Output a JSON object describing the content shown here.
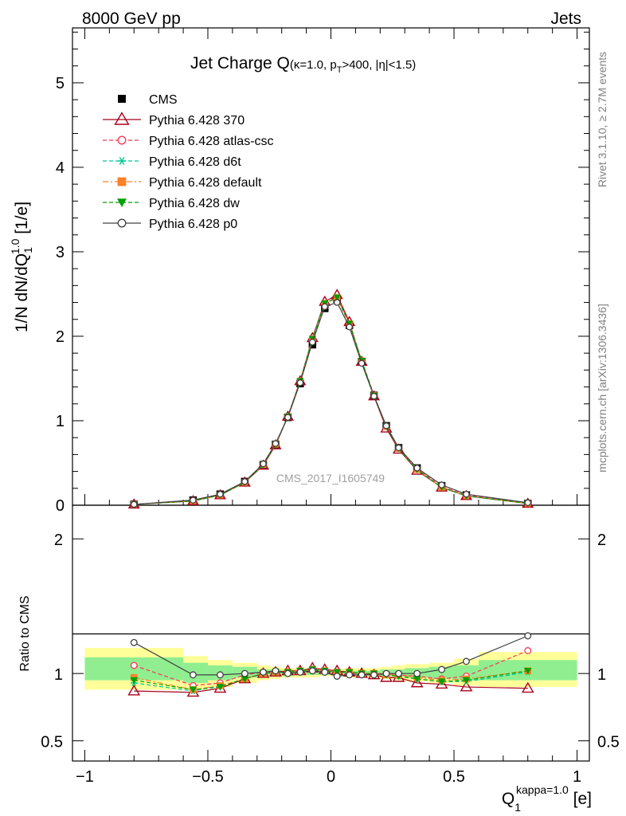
{
  "header": {
    "left": "8000 GeV pp",
    "right": "Jets"
  },
  "side_labels": {
    "rivet": "Rivet 3.1.10, ≥ 2.7M events",
    "mcplots": "mcplots.cern.ch [arXiv:1306.3436]"
  },
  "chart_data": [
    {
      "type": "line",
      "title": {
        "main": "Jet Charge Q",
        "sub": "(κ=1.0, p",
        "sub_T": "T",
        "sub2": ">400, |η|<1.5)"
      },
      "watermark": "CMS_2017_I1605749",
      "ylabel": {
        "a": "1/N dN/dQ",
        "sub": "1",
        "sup": "1.0",
        "b": " [1/e]"
      },
      "xlabel": {
        "a": "Q",
        "sub": "1",
        "sup": "kappa=1.0",
        "b": " [e]"
      },
      "xlim": [
        -1.05,
        1.05
      ],
      "ylim": [
        0,
        5.65
      ],
      "yticks": [
        0,
        1,
        2,
        3,
        4,
        5
      ],
      "ytick_labels": [
        "0",
        "1",
        "2",
        "3",
        "4",
        "5"
      ],
      "x": [
        -0.8,
        -0.56,
        -0.45,
        -0.35,
        -0.275,
        -0.225,
        -0.175,
        -0.125,
        -0.075,
        -0.025,
        0.025,
        0.075,
        0.125,
        0.175,
        0.225,
        0.275,
        0.35,
        0.45,
        0.55,
        0.8
      ],
      "series": [
        {
          "name": "CMS",
          "key": "cms",
          "color": "#000000",
          "marker": "square",
          "dash": "none",
          "values": [
            0.01,
            0.06,
            0.13,
            0.28,
            0.48,
            0.72,
            1.04,
            1.44,
            1.9,
            2.33,
            2.44,
            2.13,
            1.7,
            1.3,
            0.94,
            0.68,
            0.44,
            0.23,
            0.12,
            0.02
          ]
        },
        {
          "name": "Pythia 6.428 370",
          "key": "p370",
          "color": "#a8001a",
          "marker": "triangle-open",
          "dash": "solid",
          "values": [
            0.01,
            0.05,
            0.12,
            0.27,
            0.47,
            0.71,
            1.05,
            1.47,
            1.98,
            2.41,
            2.49,
            2.17,
            1.7,
            1.29,
            0.91,
            0.66,
            0.41,
            0.21,
            0.11,
            0.02
          ]
        },
        {
          "name": "Pythia 6.428 atlas-csc",
          "key": "atlas",
          "color": "#ff3355",
          "marker": "circle-open",
          "dash": "dashed",
          "values": [
            0.01,
            0.06,
            0.12,
            0.27,
            0.48,
            0.72,
            1.05,
            1.46,
            1.96,
            2.39,
            2.45,
            2.14,
            1.71,
            1.3,
            0.93,
            0.68,
            0.43,
            0.22,
            0.12,
            0.02
          ]
        },
        {
          "name": "Pythia 6.428 d6t",
          "key": "d6t",
          "color": "#00c896",
          "marker": "star",
          "dash": "dashed",
          "values": [
            0.01,
            0.05,
            0.12,
            0.27,
            0.48,
            0.72,
            1.05,
            1.47,
            1.97,
            2.39,
            2.46,
            2.15,
            1.71,
            1.3,
            0.93,
            0.67,
            0.42,
            0.21,
            0.11,
            0.02
          ]
        },
        {
          "name": "Pythia 6.428 default",
          "key": "default",
          "color": "#ff7f27",
          "marker": "square",
          "dash": "dashdot",
          "values": [
            0.01,
            0.05,
            0.12,
            0.27,
            0.48,
            0.72,
            1.05,
            1.47,
            1.97,
            2.39,
            2.46,
            2.15,
            1.71,
            1.3,
            0.93,
            0.67,
            0.42,
            0.21,
            0.11,
            0.02
          ]
        },
        {
          "name": "Pythia 6.428 dw",
          "key": "dw",
          "color": "#00a000",
          "marker": "triangle-down",
          "dash": "dashed",
          "values": [
            0.01,
            0.05,
            0.12,
            0.27,
            0.48,
            0.72,
            1.05,
            1.47,
            1.97,
            2.39,
            2.46,
            2.15,
            1.71,
            1.3,
            0.93,
            0.67,
            0.42,
            0.21,
            0.11,
            0.02
          ]
        },
        {
          "name": "Pythia 6.428 p0",
          "key": "p0",
          "color": "#404040",
          "marker": "circle-open",
          "dash": "solid",
          "values": [
            0.01,
            0.06,
            0.13,
            0.28,
            0.49,
            0.73,
            1.04,
            1.45,
            1.93,
            2.35,
            2.4,
            2.11,
            1.68,
            1.29,
            0.94,
            0.68,
            0.44,
            0.24,
            0.13,
            0.03
          ]
        }
      ],
      "legend_position": "top-left"
    },
    {
      "type": "line",
      "ylabel": "Ratio to CMS",
      "xlim": [
        -1.05,
        1.05
      ],
      "ylim": [
        0.35,
        2.25
      ],
      "yticks": [
        0.5,
        1,
        2
      ],
      "ytick_labels": [
        "0.5",
        "1",
        "2"
      ],
      "xticks": [
        -1,
        -0.5,
        0,
        0.5,
        1
      ],
      "xtick_labels": [
        "−1",
        "−0.5",
        "0",
        "0.5",
        "1"
      ],
      "x": [
        -0.8,
        -0.56,
        -0.45,
        -0.35,
        -0.275,
        -0.225,
        -0.175,
        -0.125,
        -0.075,
        -0.025,
        0.025,
        0.075,
        0.125,
        0.175,
        0.225,
        0.275,
        0.35,
        0.45,
        0.55,
        0.8
      ],
      "bands": {
        "edges": [
          -1.0,
          -0.6,
          -0.5,
          -0.4,
          -0.3,
          -0.25,
          -0.2,
          -0.15,
          -0.1,
          -0.05,
          0.0,
          0.05,
          0.1,
          0.15,
          0.2,
          0.25,
          0.3,
          0.4,
          0.5,
          0.6,
          1.0
        ],
        "yellow_upper": [
          1.19,
          1.13,
          1.1,
          1.08,
          1.06,
          1.05,
          1.04,
          1.04,
          1.04,
          1.03,
          1.03,
          1.04,
          1.04,
          1.04,
          1.05,
          1.06,
          1.07,
          1.08,
          1.11,
          1.16
        ],
        "yellow_lower": [
          0.88,
          0.88,
          0.9,
          0.93,
          0.95,
          0.96,
          0.97,
          0.97,
          0.97,
          0.98,
          0.98,
          0.97,
          0.97,
          0.97,
          0.96,
          0.95,
          0.94,
          0.93,
          0.91,
          0.9
        ],
        "green_upper": [
          1.12,
          1.08,
          1.06,
          1.05,
          1.03,
          1.03,
          1.02,
          1.02,
          1.02,
          1.02,
          1.02,
          1.02,
          1.02,
          1.02,
          1.03,
          1.03,
          1.04,
          1.05,
          1.06,
          1.1
        ],
        "green_lower": [
          0.95,
          0.93,
          0.95,
          0.97,
          0.98,
          0.98,
          0.98,
          0.99,
          0.99,
          0.99,
          0.99,
          0.99,
          0.99,
          0.99,
          0.98,
          0.98,
          0.97,
          0.96,
          0.95,
          0.95
        ]
      },
      "series": [
        {
          "name": "Pythia 6.428 370",
          "key": "p370",
          "values": [
            0.87,
            0.86,
            0.89,
            0.96,
            1.0,
            1.01,
            1.02,
            1.02,
            1.04,
            1.03,
            1.02,
            1.01,
            1.0,
            0.99,
            0.97,
            0.97,
            0.93,
            0.92,
            0.9,
            0.89
          ]
        },
        {
          "name": "Pythia 6.428 atlas-csc",
          "key": "atlas",
          "values": [
            1.06,
            0.91,
            0.93,
            0.99,
            1.01,
            1.01,
            1.01,
            1.02,
            1.03,
            1.02,
            1.01,
            1.0,
            1.0,
            1.0,
            1.0,
            0.99,
            0.98,
            0.96,
            0.98,
            1.17
          ]
        },
        {
          "name": "Pythia 6.428 d6t",
          "key": "d6t",
          "values": [
            0.93,
            0.87,
            0.91,
            0.96,
            1.0,
            1.01,
            1.01,
            1.02,
            1.03,
            1.02,
            1.01,
            1.01,
            1.0,
            1.0,
            0.99,
            0.98,
            0.96,
            0.94,
            0.94,
            1.01
          ]
        },
        {
          "name": "Pythia 6.428 default",
          "key": "default",
          "values": [
            0.97,
            0.88,
            0.91,
            0.96,
            1.0,
            1.01,
            1.01,
            1.02,
            1.03,
            1.02,
            1.01,
            1.01,
            1.0,
            1.0,
            0.99,
            0.99,
            0.97,
            0.95,
            0.96,
            1.02
          ]
        },
        {
          "name": "Pythia 6.428 dw",
          "key": "dw",
          "values": [
            0.95,
            0.88,
            0.9,
            0.96,
            1.0,
            1.01,
            1.01,
            1.02,
            1.03,
            1.02,
            1.01,
            1.01,
            1.0,
            1.0,
            0.99,
            0.98,
            0.96,
            0.94,
            0.95,
            1.02
          ]
        },
        {
          "name": "Pythia 6.428 p0",
          "key": "p0",
          "values": [
            1.23,
            0.99,
            0.99,
            1.0,
            1.01,
            1.02,
            1.0,
            1.01,
            1.02,
            1.01,
            0.98,
            0.99,
            0.99,
            0.99,
            1.0,
            1.0,
            1.0,
            1.03,
            1.09,
            1.28
          ]
        }
      ]
    }
  ]
}
